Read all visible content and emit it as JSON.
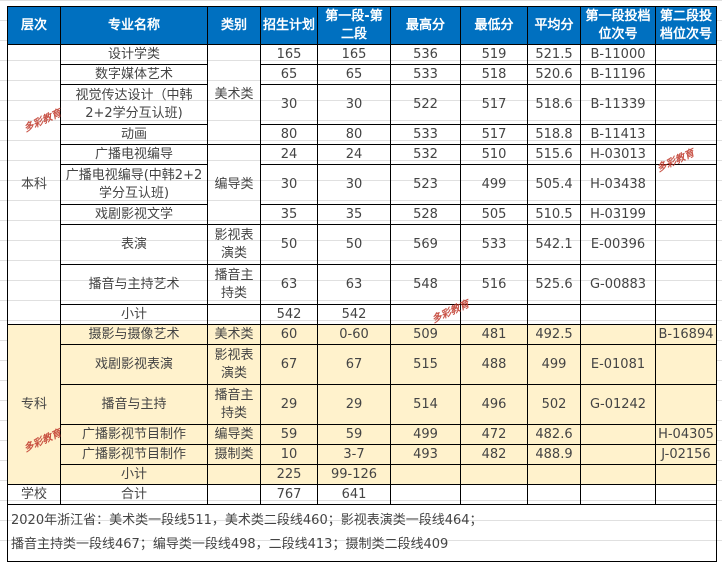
{
  "headers": [
    "层次",
    "专业名称",
    "类别",
    "招生计划",
    "第一段-第二段",
    "最高分",
    "最低分",
    "平均分",
    "第一段投档位次号",
    "第二段投档位次号"
  ],
  "groups": {
    "benke": "本科",
    "zhuanke": "专科",
    "school": "学校"
  },
  "categories": {
    "art": "美术类",
    "director": "编导类",
    "film": "影视表演类",
    "broadcast": "播音主持类",
    "art2": "美术类",
    "film2": "影视表演类",
    "broadcast2": "播音主持类",
    "director2": "编导类",
    "shoot": "摄制类"
  },
  "rows": [
    [
      "设计学类",
      "165",
      "165",
      "536",
      "519",
      "521.5",
      "B-11000",
      ""
    ],
    [
      "数字媒体艺术",
      "65",
      "65",
      "533",
      "518",
      "520.6",
      "B-11196",
      ""
    ],
    [
      "视觉传达设计（中韩2+2学分互认班)",
      "30",
      "30",
      "522",
      "517",
      "518.6",
      "B-11339",
      ""
    ],
    [
      "动画",
      "80",
      "80",
      "533",
      "517",
      "518.8",
      "B-11413",
      ""
    ],
    [
      "广播电视编导",
      "24",
      "24",
      "532",
      "510",
      "515.6",
      "H-03013",
      ""
    ],
    [
      "广播电视编导(中韩2+2学分互认班)",
      "30",
      "30",
      "523",
      "499",
      "505.4",
      "H-03438",
      ""
    ],
    [
      "戏剧影视文学",
      "35",
      "35",
      "528",
      "505",
      "510.5",
      "H-03199",
      ""
    ],
    [
      "表演",
      "50",
      "50",
      "569",
      "533",
      "542.1",
      "E-00396",
      ""
    ],
    [
      "播音与主持艺术",
      "63",
      "63",
      "548",
      "516",
      "525.6",
      "G-00883",
      ""
    ],
    [
      "小计",
      "542",
      "542",
      "",
      "",
      "",
      "",
      ""
    ],
    [
      "摄影与摄像艺术",
      "60",
      "0-60",
      "509",
      "481",
      "492.5",
      "",
      "B-16894"
    ],
    [
      "戏剧影视表演",
      "67",
      "67",
      "515",
      "488",
      "499",
      "E-01081",
      ""
    ],
    [
      "播音与主持",
      "29",
      "29",
      "514",
      "496",
      "502",
      "G-01242",
      ""
    ],
    [
      "广播影视节目制作",
      "59",
      "59",
      "499",
      "472",
      "482.6",
      "",
      "H-04305"
    ],
    [
      "广播影视节目制作",
      "10",
      "3-7",
      "493",
      "482",
      "488.9",
      "",
      "J-02156"
    ],
    [
      "小计",
      "225",
      "99-126",
      "",
      "",
      "",
      "",
      ""
    ],
    [
      "合计",
      "767",
      "641",
      "",
      "",
      "",
      "",
      ""
    ]
  ],
  "note": [
    "2020年浙江省：美术类一段线511，美术类二段线460；影视表演类一段线464；",
    "播音主持类一段线467；编导类一段线498，二段线413；摄制类二段线409"
  ],
  "watermark": "多彩教育",
  "colors": {
    "header": "#0070c0",
    "zhuanke_fill": "#fff2cc"
  }
}
